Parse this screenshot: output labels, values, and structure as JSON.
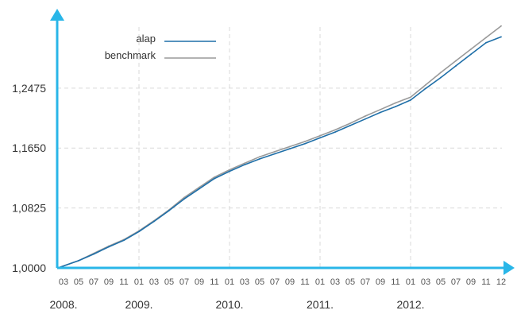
{
  "chart_data": {
    "type": "line",
    "title": "",
    "xlabel": "",
    "ylabel": "",
    "x": [
      "2008-03",
      "2008-05",
      "2008-07",
      "2008-09",
      "2008-11",
      "2009-01",
      "2009-03",
      "2009-05",
      "2009-07",
      "2009-09",
      "2009-11",
      "2010-01",
      "2010-03",
      "2010-05",
      "2010-07",
      "2010-09",
      "2010-11",
      "2011-01",
      "2011-03",
      "2011-05",
      "2011-07",
      "2011-09",
      "2011-11",
      "2012-01",
      "2012-03",
      "2012-05",
      "2012-07",
      "2012-09",
      "2012-11",
      "2012-12"
    ],
    "x_tick_labels": [
      "03",
      "05",
      "07",
      "09",
      "11",
      "01",
      "03",
      "05",
      "07",
      "09",
      "11",
      "01",
      "03",
      "05",
      "07",
      "09",
      "11",
      "01",
      "03",
      "05",
      "07",
      "09",
      "11",
      "01",
      "03",
      "05",
      "07",
      "09",
      "11",
      "12"
    ],
    "year_labels": [
      {
        "label": "2008.",
        "month": "2008-03"
      },
      {
        "label": "2009.",
        "month": "2009-01"
      },
      {
        "label": "2010.",
        "month": "2010-01"
      },
      {
        "label": "2011.",
        "month": "2011-01"
      },
      {
        "label": "2012.",
        "month": "2012-01"
      }
    ],
    "y_ticks": [
      1.0,
      1.0825,
      1.165,
      1.2475
    ],
    "y_tick_labels": [
      "1,0000",
      "1,0825",
      "1,1650",
      "1,2475"
    ],
    "ylim": [
      1.0,
      1.36
    ],
    "grid": true,
    "legend_position": "top-left",
    "series": [
      {
        "name": "alap",
        "color": "#1f6fa8",
        "values": [
          1.0,
          1.01,
          1.019,
          1.029,
          1.038,
          1.05,
          1.064,
          1.079,
          1.095,
          1.109,
          1.123,
          1.133,
          1.142,
          1.15,
          1.157,
          1.164,
          1.171,
          1.179,
          1.187,
          1.196,
          1.205,
          1.214,
          1.222,
          1.231,
          1.247,
          1.262,
          1.278,
          1.294,
          1.31,
          1.318
        ]
      },
      {
        "name": "benchmark",
        "color": "#9a9a9a",
        "values": [
          1.0,
          1.01,
          1.02,
          1.03,
          1.039,
          1.051,
          1.065,
          1.08,
          1.097,
          1.111,
          1.125,
          1.135,
          1.144,
          1.153,
          1.16,
          1.167,
          1.174,
          1.182,
          1.19,
          1.199,
          1.209,
          1.218,
          1.227,
          1.235,
          1.252,
          1.269,
          1.285,
          1.301,
          1.317,
          1.333
        ]
      }
    ]
  },
  "colors": {
    "axis": "#29b6e8",
    "grid": "#d9d9d9"
  }
}
